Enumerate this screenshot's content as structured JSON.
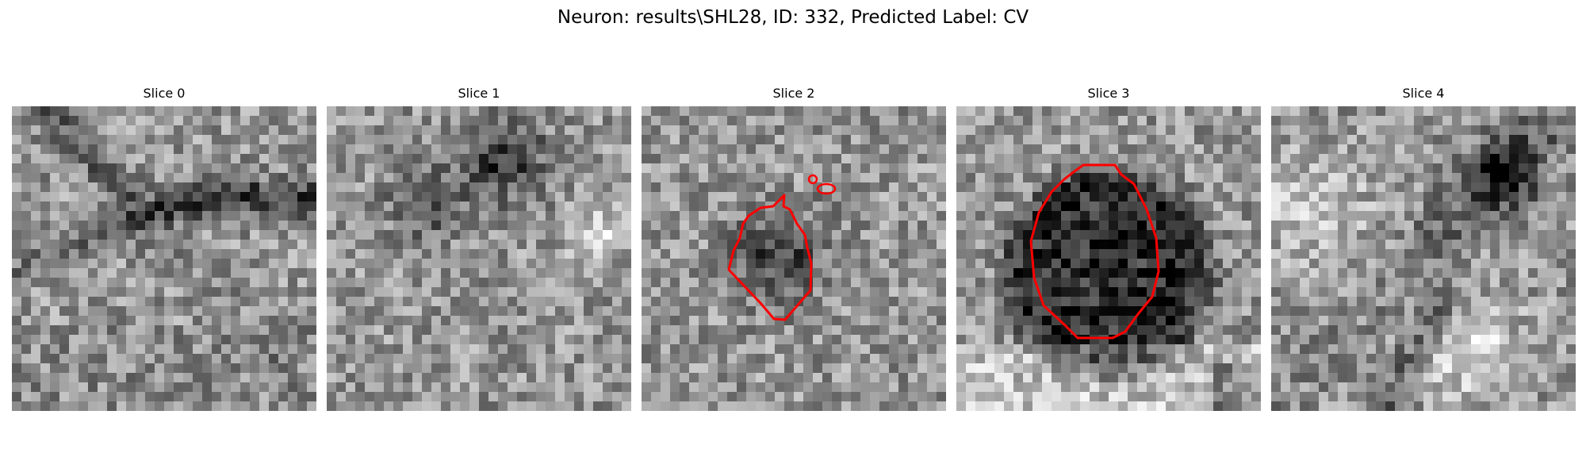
{
  "figure": {
    "suptitle": "Neuron: results\\SHL28, ID: 332, Predicted Label: CV",
    "contour_color": "#ff0000"
  },
  "slices": [
    {
      "title": "Slice 0",
      "has_contour": false
    },
    {
      "title": "Slice 1",
      "has_contour": false
    },
    {
      "title": "Slice 2",
      "has_contour": true
    },
    {
      "title": "Slice 3",
      "has_contour": true
    },
    {
      "title": "Slice 4",
      "has_contour": false
    }
  ]
}
